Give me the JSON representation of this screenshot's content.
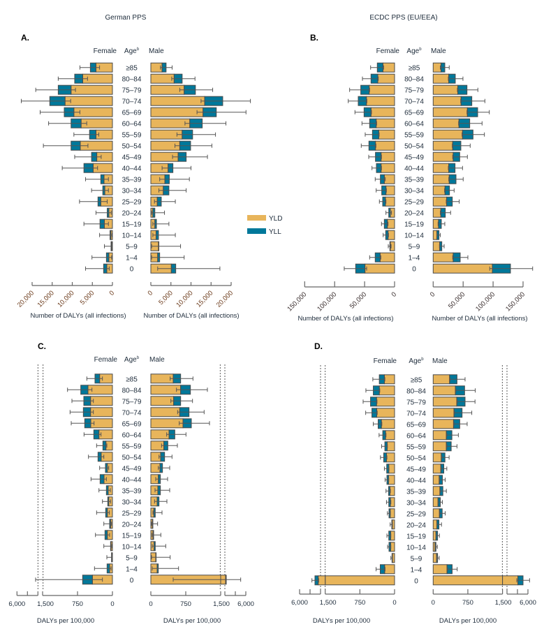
{
  "colors": {
    "yld": "#E8B55B",
    "yll": "#00789A",
    "outline": "#4a4a4a",
    "whisker": "#555555"
  },
  "column_titles": [
    "German PPS",
    "ECDC PPS (EU/EEA)"
  ],
  "legend": [
    {
      "label": "YLD",
      "color": "#E8B55B"
    },
    {
      "label": "YLL",
      "color": "#00789A"
    }
  ],
  "age_groups": [
    "≥85",
    "80–84",
    "75–79",
    "70–74",
    "65–69",
    "60–64",
    "55–59",
    "50–54",
    "45–49",
    "40–44",
    "35–39",
    "30–34",
    "25–29",
    "20–24",
    "15–19",
    "10–14",
    "5–9",
    "1–4",
    "0"
  ],
  "chart_data": [
    {
      "type": "bar",
      "orientation": "horizontal",
      "stacked": true,
      "letter": "A.",
      "female_header": "Female",
      "age_header": "Age",
      "age_superscript": "b",
      "male_header": "Male",
      "xlabel_female": "Number of DALYs (all infections)",
      "xlabel_male": "Number of DALYs (all infections)",
      "xlim": [
        0,
        20000
      ],
      "axis_break": false,
      "ticks_female": [
        {
          "value": 20000,
          "label": "20,000"
        },
        {
          "value": 15000,
          "label": "15,000"
        },
        {
          "value": 10000,
          "label": "10,000"
        },
        {
          "value": 5000,
          "label": "5,000"
        },
        {
          "value": 0,
          "label": "0"
        }
      ],
      "ticks_male": [
        {
          "value": 0,
          "label": "0"
        },
        {
          "value": 5000,
          "label": "5,000"
        },
        {
          "value": 10000,
          "label": "10,000"
        },
        {
          "value": 15000,
          "label": "15,000"
        },
        {
          "value": 20000,
          "label": "20,000"
        }
      ],
      "row_fields": [
        "yld",
        "total",
        "ui_low",
        "ui_high"
      ],
      "female": [
        [
          4100,
          5500,
          3200,
          8100
        ],
        [
          7400,
          9400,
          6200,
          13500
        ],
        [
          10300,
          13500,
          9200,
          19100
        ],
        [
          11800,
          15600,
          10400,
          22700
        ],
        [
          9600,
          12000,
          8100,
          18000
        ],
        [
          7800,
          10300,
          6400,
          15900
        ],
        [
          4100,
          5700,
          3400,
          9600
        ],
        [
          8000,
          10300,
          6100,
          17200
        ],
        [
          3900,
          5200,
          2800,
          9400
        ],
        [
          4800,
          7100,
          3700,
          12500
        ],
        [
          2100,
          2900,
          1000,
          6700
        ],
        [
          1900,
          2400,
          1000,
          5200
        ],
        [
          2900,
          3600,
          1300,
          8200
        ],
        [
          900,
          1300,
          300,
          4100
        ],
        [
          2000,
          3100,
          1000,
          7100
        ],
        [
          400,
          600,
          100,
          3200
        ],
        [
          200,
          350,
          50,
          2000
        ],
        [
          900,
          1500,
          200,
          5100
        ],
        [
          1400,
          2200,
          800,
          6700
        ]
      ],
      "male": [
        [
          2800,
          3800,
          2400,
          5300
        ],
        [
          5800,
          7800,
          5200,
          11000
        ],
        [
          8300,
          11100,
          7200,
          15400
        ],
        [
          13400,
          17900,
          12500,
          24800
        ],
        [
          13000,
          16300,
          11500,
          23700
        ],
        [
          9700,
          12800,
          8500,
          18700
        ],
        [
          7800,
          10400,
          6500,
          16100
        ],
        [
          7200,
          9900,
          6000,
          15200
        ],
        [
          6800,
          8800,
          5400,
          14100
        ],
        [
          4300,
          5500,
          2800,
          10000
        ],
        [
          3500,
          4600,
          2200,
          9600
        ],
        [
          3100,
          4500,
          2000,
          8800
        ],
        [
          1600,
          2600,
          900,
          6100
        ],
        [
          500,
          1000,
          200,
          3400
        ],
        [
          1000,
          1400,
          500,
          4500
        ],
        [
          1300,
          1900,
          500,
          6100
        ],
        [
          1900,
          2000,
          200,
          7400
        ],
        [
          1700,
          2200,
          200,
          8300
        ],
        [
          5100,
          6200,
          1700,
          17200
        ]
      ]
    },
    {
      "type": "bar",
      "orientation": "horizontal",
      "stacked": true,
      "letter": "B.",
      "female_header": "Female",
      "age_header": "Age",
      "age_superscript": "b",
      "male_header": "Male",
      "xlabel_female": "Number of  DALYs (all infections)",
      "xlabel_male": "Number of DALYs (all infections)",
      "xlim": [
        0,
        150000
      ],
      "axis_break": false,
      "ticks_female": [
        {
          "value": 150000,
          "label": "150,000"
        },
        {
          "value": 100000,
          "label": "100,000"
        },
        {
          "value": 50000,
          "label": "50,000"
        },
        {
          "value": 0,
          "label": "0"
        }
      ],
      "ticks_male": [
        {
          "value": 0,
          "label": "0"
        },
        {
          "value": 50000,
          "label": "50,000"
        },
        {
          "value": 100000,
          "label": "100,000"
        },
        {
          "value": 150000,
          "label": "150,000"
        }
      ],
      "row_fields": [
        "yld",
        "total",
        "ui_low",
        "ui_high"
      ],
      "female": [
        [
          19400,
          28800,
          18300,
          40000
        ],
        [
          28000,
          39300,
          27200,
          53600
        ],
        [
          42400,
          56400,
          41600,
          75000
        ],
        [
          47000,
          60600,
          46200,
          77300
        ],
        [
          39300,
          50900,
          38500,
          66100
        ],
        [
          30700,
          41600,
          29900,
          54400
        ],
        [
          26400,
          36900,
          25700,
          49000
        ],
        [
          31900,
          42800,
          31100,
          55600
        ],
        [
          22500,
          31900,
          21800,
          43100
        ],
        [
          22500,
          30300,
          21800,
          37700
        ],
        [
          17100,
          23700,
          15500,
          32300
        ],
        [
          14400,
          21400,
          13600,
          30700
        ],
        [
          15200,
          19800,
          14400,
          25300
        ],
        [
          7000,
          9700,
          5100,
          14400
        ],
        [
          12000,
          17100,
          10900,
          21800
        ],
        [
          10900,
          14800,
          10100,
          19000
        ],
        [
          7000,
          7800,
          5800,
          10500
        ],
        [
          24100,
          32300,
          22900,
          41600
        ],
        [
          49400,
          64900,
          46600,
          84000
        ]
      ],
      "male": [
        [
          13200,
          19400,
          12000,
          26800
        ],
        [
          26000,
          36900,
          25300,
          49700
        ],
        [
          41200,
          56400,
          40400,
          74600
        ],
        [
          46600,
          64500,
          45900,
          86300
        ],
        [
          57100,
          74200,
          56400,
          93700
        ],
        [
          43100,
          61000,
          42400,
          81600
        ],
        [
          49000,
          66500,
          48200,
          85500
        ],
        [
          32600,
          46200,
          31900,
          61800
        ],
        [
          33400,
          44300,
          32600,
          57100
        ],
        [
          26000,
          36500,
          25300,
          49000
        ],
        [
          26800,
          38100,
          26000,
          50100
        ],
        [
          19800,
          27200,
          19000,
          35000
        ],
        [
          22500,
          31900,
          21800,
          43500
        ],
        [
          12800,
          20200,
          12000,
          29100
        ],
        [
          8900,
          13600,
          8200,
          19400
        ],
        [
          6200,
          9700,
          6600,
          12000
        ],
        [
          10900,
          14400,
          10500,
          18300
        ],
        [
          33400,
          45100,
          32600,
          57900
        ],
        [
          98700,
          129000,
          94400,
          166000
        ]
      ]
    },
    {
      "type": "bar",
      "orientation": "horizontal",
      "stacked": true,
      "letter": "C.",
      "female_header": "Female",
      "age_header": "Age",
      "age_superscript": "b",
      "male_header": "Male",
      "xlabel_female": "DALYs per 100,000",
      "xlabel_male": "DALYs per 100,000",
      "xlim": [
        0,
        6000
      ],
      "axis_break": true,
      "break_at": 1500,
      "ticks_female": [
        {
          "value": 6000,
          "label": "6,000"
        },
        {
          "value": 1500,
          "label": "1,500"
        },
        {
          "value": 750,
          "label": "750"
        },
        {
          "value": 0,
          "label": "0"
        }
      ],
      "ticks_male": [
        {
          "value": 0,
          "label": "0"
        },
        {
          "value": 750,
          "label": "750"
        },
        {
          "value": 1500,
          "label": "1,500"
        },
        {
          "value": 6000,
          "label": "6,000"
        }
      ],
      "row_fields": [
        "yld",
        "total",
        "ui_low",
        "ui_high"
      ],
      "female": [
        [
          275,
          375,
          215,
          550
        ],
        [
          525,
          680,
          440,
          965
        ],
        [
          470,
          615,
          410,
          870
        ],
        [
          470,
          625,
          410,
          910
        ],
        [
          465,
          595,
          395,
          885
        ],
        [
          290,
          400,
          245,
          610
        ],
        [
          140,
          205,
          120,
          340
        ],
        [
          240,
          310,
          185,
          515
        ],
        [
          110,
          150,
          80,
          275
        ],
        [
          180,
          265,
          130,
          460
        ],
        [
          90,
          130,
          45,
          290
        ],
        [
          80,
          100,
          40,
          215
        ],
        [
          110,
          145,
          65,
          340
        ],
        [
          40,
          60,
          20,
          185
        ],
        [
          110,
          160,
          60,
          365
        ],
        [
          30,
          40,
          10,
          185
        ],
        [
          15,
          20,
          5,
          120
        ],
        [
          60,
          115,
          30,
          385
        ],
        [
          430,
          640,
          215,
          2000
        ]
      ],
      "male": [
        [
          480,
          640,
          415,
          905
        ],
        [
          640,
          850,
          550,
          1215
        ],
        [
          490,
          640,
          430,
          895
        ],
        [
          620,
          820,
          575,
          1145
        ],
        [
          690,
          870,
          610,
          1260
        ],
        [
          390,
          515,
          340,
          755
        ],
        [
          280,
          365,
          230,
          570
        ],
        [
          210,
          295,
          175,
          455
        ],
        [
          195,
          250,
          160,
          405
        ],
        [
          160,
          205,
          105,
          360
        ],
        [
          150,
          205,
          90,
          405
        ],
        [
          135,
          175,
          80,
          345
        ],
        [
          65,
          95,
          45,
          240
        ],
        [
          35,
          40,
          15,
          145
        ],
        [
          45,
          60,
          25,
          215
        ],
        [
          70,
          95,
          30,
          320
        ],
        [
          105,
          110,
          15,
          415
        ],
        [
          135,
          160,
          30,
          595
        ],
        [
          1650,
          1800,
          480,
          4900
        ]
      ]
    },
    {
      "type": "bar",
      "orientation": "horizontal",
      "stacked": true,
      "letter": "D.",
      "female_header": "Female",
      "age_header": "Age",
      "age_superscript": "b",
      "male_header": "Male",
      "xlabel_female": "DALYs per 100,000",
      "xlabel_male": "DALYs per 100,000",
      "xlim": [
        0,
        6000
      ],
      "axis_break": true,
      "break_at": 1500,
      "ticks_female": [
        {
          "value": 6000,
          "label": "6,000"
        },
        {
          "value": 1500,
          "label": "1,500"
        },
        {
          "value": 750,
          "label": "750"
        },
        {
          "value": 0,
          "label": "0"
        }
      ],
      "ticks_male": [
        {
          "value": 0,
          "label": "0"
        },
        {
          "value": 750,
          "label": "750"
        },
        {
          "value": 1500,
          "label": "1,500"
        },
        {
          "value": 6000,
          "label": "6,000"
        }
      ],
      "row_fields": [
        "yld",
        "total",
        "ui_low",
        "ui_high"
      ],
      "female": [
        [
          220,
          330,
          210,
          470
        ],
        [
          330,
          460,
          320,
          620
        ],
        [
          390,
          520,
          380,
          680
        ],
        [
          385,
          490,
          375,
          625
        ],
        [
          285,
          355,
          275,
          460
        ],
        [
          195,
          255,
          185,
          335
        ],
        [
          160,
          210,
          155,
          280
        ],
        [
          175,
          235,
          165,
          305
        ],
        [
          125,
          170,
          120,
          220
        ],
        [
          130,
          165,
          125,
          205
        ],
        [
          100,
          130,
          90,
          185
        ],
        [
          90,
          125,
          80,
          175
        ],
        [
          95,
          120,
          90,
          155
        ],
        [
          50,
          60,
          45,
          95
        ],
        [
          85,
          125,
          80,
          165
        ],
        [
          85,
          120,
          80,
          150
        ],
        [
          50,
          55,
          45,
          80
        ],
        [
          215,
          310,
          205,
          400
        ],
        [
          2000,
          2700,
          1900,
          3350
        ]
      ],
      "male": [
        [
          355,
          515,
          365,
          690
        ],
        [
          480,
          680,
          490,
          910
        ],
        [
          510,
          690,
          520,
          905
        ],
        [
          450,
          625,
          460,
          835
        ],
        [
          440,
          575,
          450,
          735
        ],
        [
          285,
          405,
          295,
          545
        ],
        [
          285,
          390,
          295,
          515
        ],
        [
          175,
          255,
          185,
          345
        ],
        [
          165,
          230,
          175,
          295
        ],
        [
          130,
          200,
          140,
          260
        ],
        [
          145,
          210,
          155,
          285
        ],
        [
          105,
          155,
          110,
          200
        ],
        [
          135,
          195,
          145,
          260
        ],
        [
          80,
          125,
          85,
          180
        ],
        [
          60,
          95,
          65,
          135
        ],
        [
          40,
          60,
          45,
          90
        ],
        [
          75,
          95,
          80,
          130
        ],
        [
          300,
          410,
          310,
          520
        ],
        [
          3850,
          4950,
          3600,
          6350
        ]
      ]
    }
  ]
}
